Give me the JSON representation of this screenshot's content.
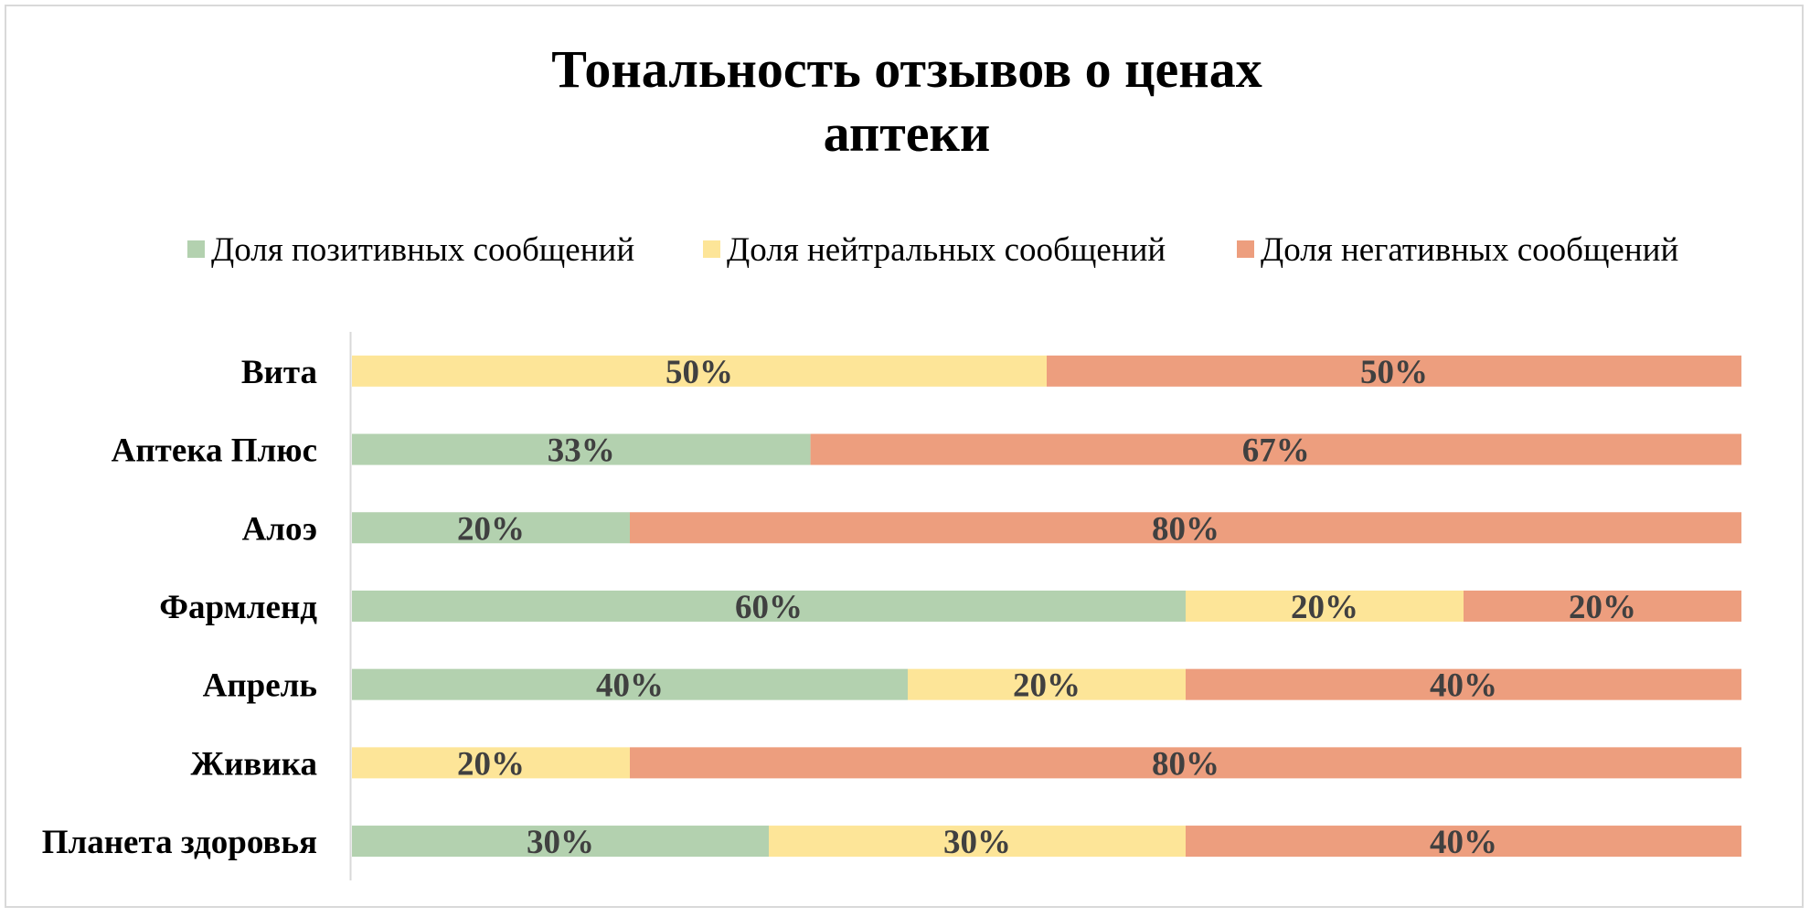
{
  "chart_data": {
    "type": "bar",
    "orientation": "horizontal",
    "stacked": "100%",
    "title": "Тональность отзывов о ценах аптеки",
    "title_lines": [
      "Тональность отзывов о ценах",
      "аптеки"
    ],
    "categories": [
      "Вита",
      "Аптека Плюс",
      "Алоэ",
      "Фармленд",
      "Апрель",
      "Живика",
      "Планета здоровья"
    ],
    "series": [
      {
        "name": "Доля позитивных сообщений",
        "color": "#b3d1af",
        "values": [
          0,
          33,
          20,
          60,
          40,
          0,
          30
        ]
      },
      {
        "name": "Доля нейтральных сообщений",
        "color": "#fde598",
        "values": [
          50,
          0,
          0,
          20,
          20,
          20,
          30
        ]
      },
      {
        "name": "Доля негативных сообщений",
        "color": "#ed9e7e",
        "values": [
          50,
          67,
          80,
          20,
          40,
          80,
          40
        ]
      }
    ],
    "value_suffix": "%",
    "xlim": [
      0,
      100
    ],
    "legend_position": "top",
    "grid": false,
    "data_labels": true
  }
}
